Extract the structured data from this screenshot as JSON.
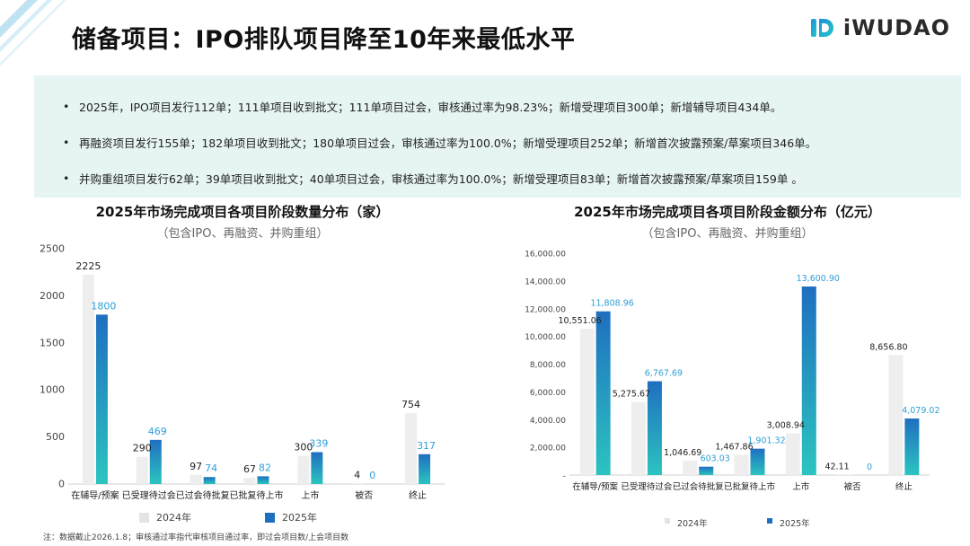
{
  "header": {
    "title": "储备项目：IPO排队项目降至10年来最低水平",
    "logo_text": "iWUDAO"
  },
  "summary": {
    "bullets": [
      "2025年，IPO项目发行112单；111单项目收到批文；111单项目过会，审核通过率为98.23%；新增受理项目300单；新增辅导项目434单。",
      "再融资项目发行155单；182单项目收到批文；180单项目过会，审核通过率为100.0%；新增受理项目252单；新增首次披露预案/草案项目346单。",
      "并购重组项目发行62单；39单项目收到批文；40单项目过会，审核通过率为100.0%；新增受理项目83单；新增首次披露预案/草案项目159单 。"
    ]
  },
  "colors": {
    "y2024": "#eeeeee",
    "y2025_top": "#1f6fc0",
    "y2025_bottom": "#2bc4c0",
    "label2025": "#2e9fd8"
  },
  "chart_data": [
    {
      "type": "bar",
      "title": "2025年市场完成项目各项目阶段数量分布（家）",
      "subtitle": "（包含IPO、再融资、并购重组）",
      "categories": [
        "在辅导/预案",
        "已受理待过会",
        "已过会待批复",
        "已批复待上市",
        "上市",
        "被否",
        "终止"
      ],
      "series": [
        {
          "name": "2024年",
          "values": [
            2225,
            290,
            97,
            67,
            300,
            4,
            754
          ],
          "labels": [
            "2225",
            "290",
            "97",
            "67",
            "300",
            "4",
            "754"
          ]
        },
        {
          "name": "2025年",
          "values": [
            1800,
            469,
            74,
            82,
            339,
            0,
            317
          ],
          "labels": [
            "1800",
            "469",
            "74",
            "82",
            "339",
            "0",
            "317"
          ]
        }
      ],
      "yticks": [
        "0",
        "500",
        "1000",
        "1500",
        "2000",
        "2500"
      ],
      "ylim": [
        0,
        2500
      ],
      "legend": [
        "2024年",
        "2025年"
      ]
    },
    {
      "type": "bar",
      "title": "2025年市场完成项目各项目阶段金额分布（亿元）",
      "subtitle": "（包含IPO、再融资、并购重组）",
      "categories": [
        "在辅导/预案",
        "已受理待过会",
        "已过会待批复",
        "已批复待上市",
        "上市",
        "被否",
        "终止"
      ],
      "series": [
        {
          "name": "2024年",
          "values": [
            10551.06,
            5275.67,
            1046.69,
            1467.86,
            3008.94,
            42.11,
            8656.8
          ],
          "labels": [
            "10,551.06",
            "5,275.67",
            "1,046.69",
            "1,467.86",
            "3,008.94",
            "42.11",
            "8,656.80"
          ]
        },
        {
          "name": "2025年",
          "values": [
            11808.96,
            6767.69,
            603.03,
            1901.32,
            13600.9,
            0,
            4079.02
          ],
          "labels": [
            "11,808.96",
            "6,767.69",
            "603.03",
            "1,901.32",
            "13,600.90",
            "0",
            "4,079.02"
          ]
        }
      ],
      "yticks": [
        "-",
        "2,000.00",
        "4,000.00",
        "6,000.00",
        "8,000.00",
        "10,000.00",
        "12,000.00",
        "14,000.00",
        "16,000.00"
      ],
      "ylim": [
        0,
        16000
      ],
      "legend": [
        "2024年",
        "2025年"
      ]
    }
  ],
  "footnote": "注：数据截止2026.1.8；审核通过率指代审核项目通过率，即过会项目数/上会项目数"
}
